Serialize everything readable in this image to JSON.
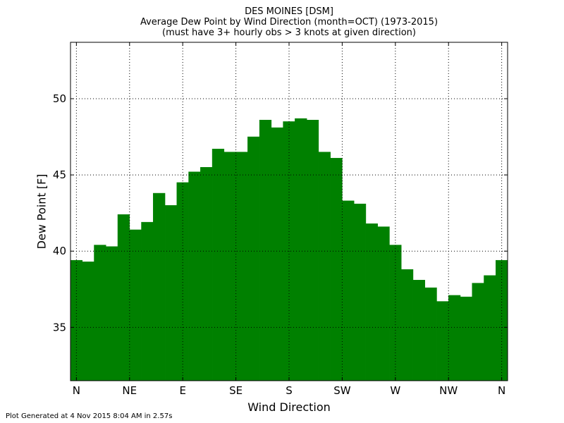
{
  "chart_data": {
    "type": "bar",
    "title_lines": [
      "DES MOINES [DSM]",
      "Average Dew Point by Wind Direction (month=OCT) (1973-2015)",
      "(must have 3+ hourly obs > 3 knots at given direction)"
    ],
    "xlabel": "Wind Direction",
    "ylabel": "Dew Point [F]",
    "xlim": [
      -5,
      365
    ],
    "ylim": [
      31.5,
      53.7
    ],
    "xticks": [
      0,
      45,
      90,
      135,
      180,
      225,
      270,
      315,
      360
    ],
    "xtick_labels": [
      "N",
      "NE",
      "E",
      "SE",
      "S",
      "SW",
      "W",
      "NW",
      "N"
    ],
    "yticks": [
      35,
      40,
      45,
      50
    ],
    "grid": true,
    "bar_color": "#008000",
    "bar_width_deg": 10,
    "bars": [
      {
        "direction": 0,
        "value": 39.4
      },
      {
        "direction": 10,
        "value": 39.3
      },
      {
        "direction": 20,
        "value": 40.4
      },
      {
        "direction": 30,
        "value": 40.3
      },
      {
        "direction": 40,
        "value": 42.4
      },
      {
        "direction": 50,
        "value": 41.4
      },
      {
        "direction": 60,
        "value": 41.9
      },
      {
        "direction": 70,
        "value": 43.8
      },
      {
        "direction": 80,
        "value": 43.0
      },
      {
        "direction": 90,
        "value": 44.5
      },
      {
        "direction": 100,
        "value": 45.2
      },
      {
        "direction": 110,
        "value": 45.5
      },
      {
        "direction": 120,
        "value": 46.7
      },
      {
        "direction": 130,
        "value": 46.5
      },
      {
        "direction": 140,
        "value": 46.5
      },
      {
        "direction": 150,
        "value": 47.5
      },
      {
        "direction": 160,
        "value": 48.6
      },
      {
        "direction": 170,
        "value": 48.1
      },
      {
        "direction": 180,
        "value": 48.5
      },
      {
        "direction": 190,
        "value": 48.7
      },
      {
        "direction": 200,
        "value": 48.6
      },
      {
        "direction": 210,
        "value": 46.5
      },
      {
        "direction": 220,
        "value": 46.1
      },
      {
        "direction": 230,
        "value": 43.3
      },
      {
        "direction": 240,
        "value": 43.1
      },
      {
        "direction": 250,
        "value": 41.8
      },
      {
        "direction": 260,
        "value": 41.6
      },
      {
        "direction": 270,
        "value": 40.4
      },
      {
        "direction": 280,
        "value": 38.8
      },
      {
        "direction": 290,
        "value": 38.1
      },
      {
        "direction": 300,
        "value": 37.6
      },
      {
        "direction": 310,
        "value": 36.7
      },
      {
        "direction": 320,
        "value": 37.1
      },
      {
        "direction": 330,
        "value": 37.0
      },
      {
        "direction": 340,
        "value": 37.9
      },
      {
        "direction": 350,
        "value": 38.4
      },
      {
        "direction": 360,
        "value": 39.4
      }
    ]
  },
  "footer": "Plot Generated at 4 Nov 2015 8:04 AM in 2.57s"
}
